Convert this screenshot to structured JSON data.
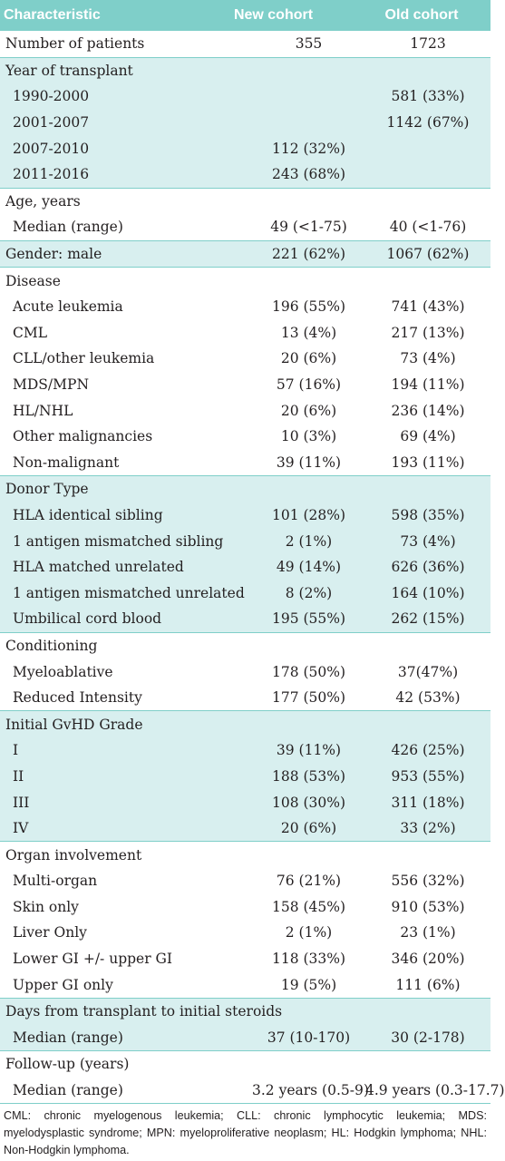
{
  "header": {
    "col1": "Characteristic",
    "col2": "New cohort",
    "col3": "Old cohort"
  },
  "groups": [
    {
      "shaded": false,
      "title": null,
      "rows": [
        {
          "label": "Number of patients",
          "new": "355",
          "old": "1723"
        }
      ]
    },
    {
      "shaded": true,
      "title": "Year of transplant",
      "rows": [
        {
          "label": "1990-2000",
          "new": "",
          "old": "581 (33%)"
        },
        {
          "label": "2001-2007",
          "new": "",
          "old": "1142 (67%)"
        },
        {
          "label": "2007-2010",
          "new": "112 (32%)",
          "old": ""
        },
        {
          "label": "2011-2016",
          "new": "243 (68%)",
          "old": ""
        }
      ]
    },
    {
      "shaded": false,
      "title": "Age, years",
      "rows": [
        {
          "label": "Median (range)",
          "new": "49 (<1-75)",
          "old": "40 (<1-76)"
        }
      ]
    },
    {
      "shaded": true,
      "title": null,
      "rows": [
        {
          "label": "Gender: male",
          "new": "221 (62%)",
          "old": "1067 (62%)"
        }
      ]
    },
    {
      "shaded": false,
      "title": "Disease",
      "rows": [
        {
          "label": "Acute leukemia",
          "new": "196 (55%)",
          "old": "741 (43%)"
        },
        {
          "label": "CML",
          "new": "13 (4%)",
          "old": "217 (13%)"
        },
        {
          "label": "CLL/other leukemia",
          "new": "20 (6%)",
          "old": "73 (4%)"
        },
        {
          "label": "MDS/MPN",
          "new": "57 (16%)",
          "old": "194 (11%)"
        },
        {
          "label": "HL/NHL",
          "new": "20 (6%)",
          "old": "236 (14%)"
        },
        {
          "label": "Other malignancies",
          "new": "10 (3%)",
          "old": "69 (4%)"
        },
        {
          "label": "Non-malignant",
          "new": "39 (11%)",
          "old": "193 (11%)"
        }
      ]
    },
    {
      "shaded": true,
      "title": "Donor Type",
      "rows": [
        {
          "label": "HLA identical sibling",
          "new": "101 (28%)",
          "old": "598 (35%)"
        },
        {
          "label": "1 antigen mismatched sibling",
          "new": "2 (1%)",
          "old": "73 (4%)"
        },
        {
          "label": "HLA matched unrelated",
          "new": "49 (14%)",
          "old": "626 (36%)"
        },
        {
          "label": "1 antigen mismatched unrelated",
          "new": "8 (2%)",
          "old": "164 (10%)"
        },
        {
          "label": "Umbilical cord blood",
          "new": "195 (55%)",
          "old": "262 (15%)"
        }
      ]
    },
    {
      "shaded": false,
      "title": "Conditioning",
      "rows": [
        {
          "label": "Myeloablative",
          "new": "178 (50%)",
          "old": "37(47%)"
        },
        {
          "label": "Reduced Intensity",
          "new": "177 (50%)",
          "old": "42 (53%)"
        }
      ]
    },
    {
      "shaded": true,
      "title": "Initial GvHD Grade",
      "rows": [
        {
          "label": "I",
          "new": "39 (11%)",
          "old": "426 (25%)"
        },
        {
          "label": "II",
          "new": "188 (53%)",
          "old": "953 (55%)"
        },
        {
          "label": "III",
          "new": "108 (30%)",
          "old": "311 (18%)"
        },
        {
          "label": "IV",
          "new": "20 (6%)",
          "old": "33 (2%)"
        }
      ]
    },
    {
      "shaded": false,
      "title": "Organ involvement",
      "rows": [
        {
          "label": "Multi-organ",
          "new": "76 (21%)",
          "old": "556 (32%)"
        },
        {
          "label": "Skin only",
          "new": "158 (45%)",
          "old": "910 (53%)"
        },
        {
          "label": "Liver Only",
          "new": "2 (1%)",
          "old": "23 (1%)"
        },
        {
          "label": "Lower GI +/- upper GI",
          "new": "118 (33%)",
          "old": "346 (20%)"
        },
        {
          "label": "Upper GI only",
          "new": "19 (5%)",
          "old": "111 (6%)"
        }
      ]
    },
    {
      "shaded": true,
      "title": "Days from transplant to initial steroids",
      "rows": [
        {
          "label": "Median (range)",
          "new": "37 (10-170)",
          "old": "30 (2-178)"
        }
      ]
    },
    {
      "shaded": false,
      "title": "Follow-up (years)",
      "rows": [
        {
          "label": "Median (range)",
          "new": "3.2 years (0.5-9)",
          "old": "4.9 years (0.3-17.7)"
        }
      ]
    }
  ],
  "footnote": "CML: chronic myelogenous leukemia; CLL: chronic lymphocytic leukemia; MDS: myelodysplastic syndrome; MPN: myeloproliferative neoplasm; HL: Hodgkin lymphoma; NHL: Non-Hodgkin lymphoma.",
  "colors": {
    "header_bg": "#7fcfc9",
    "shaded_bg": "#d8efef",
    "rule": "#7fcfc9"
  }
}
